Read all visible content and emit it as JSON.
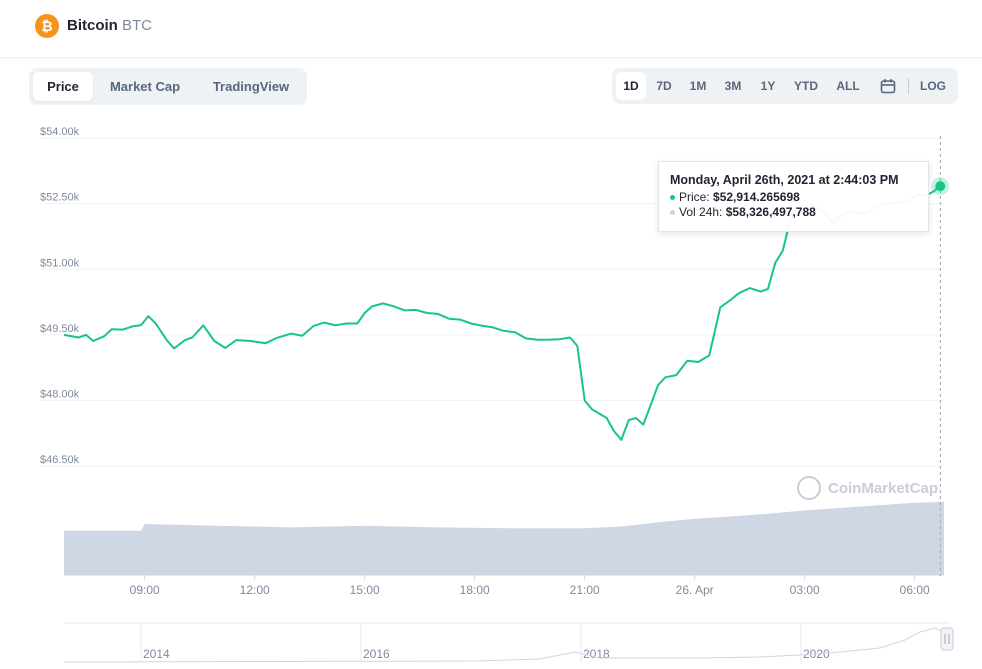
{
  "header": {
    "coin_name": "Bitcoin",
    "coin_symbol": "BTC",
    "coin_glyph": "₿"
  },
  "tabs": [
    {
      "label": "Price",
      "active": true
    },
    {
      "label": "Market Cap",
      "active": false
    },
    {
      "label": "TradingView",
      "active": false
    }
  ],
  "ranges": [
    {
      "label": "1D",
      "active": true
    },
    {
      "label": "7D",
      "active": false
    },
    {
      "label": "1M",
      "active": false
    },
    {
      "label": "3M",
      "active": false
    },
    {
      "label": "1Y",
      "active": false
    },
    {
      "label": "YTD",
      "active": false
    },
    {
      "label": "ALL",
      "active": false
    }
  ],
  "calendar_icon": "calendar-icon",
  "log_label": "LOG",
  "tooltip": {
    "date": "Monday, April 26th, 2021 at 2:44:03 PM",
    "price_label": "Price:",
    "price_value": "$52,914.265698",
    "vol_label": "Vol 24h:",
    "vol_value": "$58,326,497,788"
  },
  "watermark": "CoinMarketCap",
  "colors": {
    "line": "#16c784",
    "volume": "#cfd6e4",
    "axis_text": "#808a9d",
    "grid": "#eff2f5"
  },
  "chart_data": {
    "type": "line",
    "title": "",
    "y_ticks": [
      "$54.00k",
      "$52.50k",
      "$51.00k",
      "$49.50k",
      "$48.00k",
      "$46.50k"
    ],
    "y_tick_values": [
      54000,
      52500,
      51000,
      49500,
      48000,
      46500
    ],
    "ylim": [
      46000,
      54000
    ],
    "x_ticks": [
      "09:00",
      "12:00",
      "15:00",
      "18:00",
      "21:00",
      "26. Apr",
      "03:00",
      "06:00"
    ],
    "x_tick_hours": [
      9,
      12,
      15,
      18,
      21,
      24,
      27,
      30
    ],
    "xlim_hours": [
      6.8,
      30.8
    ],
    "series": [
      {
        "values": [
          {
            "t": 6.8,
            "p": 49500
          },
          {
            "t": 7.2,
            "p": 49440
          },
          {
            "t": 7.4,
            "p": 49500
          },
          {
            "t": 7.6,
            "p": 49360
          },
          {
            "t": 7.9,
            "p": 49470
          },
          {
            "t": 8.1,
            "p": 49630
          },
          {
            "t": 8.4,
            "p": 49620
          },
          {
            "t": 8.7,
            "p": 49700
          },
          {
            "t": 8.9,
            "p": 49720
          },
          {
            "t": 9.1,
            "p": 49930
          },
          {
            "t": 9.3,
            "p": 49760
          },
          {
            "t": 9.6,
            "p": 49380
          },
          {
            "t": 9.8,
            "p": 49190
          },
          {
            "t": 10.1,
            "p": 49380
          },
          {
            "t": 10.3,
            "p": 49440
          },
          {
            "t": 10.6,
            "p": 49720
          },
          {
            "t": 10.9,
            "p": 49360
          },
          {
            "t": 11.2,
            "p": 49200
          },
          {
            "t": 11.5,
            "p": 49380
          },
          {
            "t": 11.9,
            "p": 49360
          },
          {
            "t": 12.3,
            "p": 49310
          },
          {
            "t": 12.6,
            "p": 49430
          },
          {
            "t": 13.0,
            "p": 49530
          },
          {
            "t": 13.3,
            "p": 49480
          },
          {
            "t": 13.6,
            "p": 49700
          },
          {
            "t": 13.9,
            "p": 49780
          },
          {
            "t": 14.2,
            "p": 49720
          },
          {
            "t": 14.5,
            "p": 49760
          },
          {
            "t": 14.8,
            "p": 49760
          },
          {
            "t": 15.0,
            "p": 50000
          },
          {
            "t": 15.2,
            "p": 50150
          },
          {
            "t": 15.5,
            "p": 50220
          },
          {
            "t": 15.8,
            "p": 50150
          },
          {
            "t": 16.1,
            "p": 50060
          },
          {
            "t": 16.4,
            "p": 50070
          },
          {
            "t": 16.7,
            "p": 50000
          },
          {
            "t": 17.0,
            "p": 49980
          },
          {
            "t": 17.3,
            "p": 49870
          },
          {
            "t": 17.6,
            "p": 49850
          },
          {
            "t": 17.9,
            "p": 49760
          },
          {
            "t": 18.2,
            "p": 49710
          },
          {
            "t": 18.5,
            "p": 49670
          },
          {
            "t": 18.8,
            "p": 49590
          },
          {
            "t": 19.1,
            "p": 49560
          },
          {
            "t": 19.4,
            "p": 49420
          },
          {
            "t": 19.7,
            "p": 49390
          },
          {
            "t": 20.0,
            "p": 49390
          },
          {
            "t": 20.3,
            "p": 49400
          },
          {
            "t": 20.6,
            "p": 49440
          },
          {
            "t": 20.8,
            "p": 49250
          },
          {
            "t": 21.0,
            "p": 48000
          },
          {
            "t": 21.2,
            "p": 47800
          },
          {
            "t": 21.4,
            "p": 47700
          },
          {
            "t": 21.6,
            "p": 47600
          },
          {
            "t": 21.8,
            "p": 47300
          },
          {
            "t": 22.0,
            "p": 47100
          },
          {
            "t": 22.2,
            "p": 47550
          },
          {
            "t": 22.4,
            "p": 47600
          },
          {
            "t": 22.6,
            "p": 47450
          },
          {
            "t": 22.8,
            "p": 47900
          },
          {
            "t": 23.0,
            "p": 48350
          },
          {
            "t": 23.2,
            "p": 48530
          },
          {
            "t": 23.5,
            "p": 48580
          },
          {
            "t": 23.8,
            "p": 48910
          },
          {
            "t": 24.1,
            "p": 48880
          },
          {
            "t": 24.4,
            "p": 49030
          },
          {
            "t": 24.7,
            "p": 50130
          },
          {
            "t": 25.0,
            "p": 50310
          },
          {
            "t": 25.2,
            "p": 50450
          },
          {
            "t": 25.5,
            "p": 50570
          },
          {
            "t": 25.8,
            "p": 50490
          },
          {
            "t": 26.0,
            "p": 50550
          },
          {
            "t": 26.2,
            "p": 51150
          },
          {
            "t": 26.4,
            "p": 51420
          },
          {
            "t": 26.6,
            "p": 52100
          },
          {
            "t": 26.8,
            "p": 52420
          },
          {
            "t": 27.0,
            "p": 52300
          },
          {
            "t": 27.2,
            "p": 52470
          },
          {
            "t": 27.5,
            "p": 52330
          },
          {
            "t": 27.8,
            "p": 52040
          },
          {
            "t": 28.0,
            "p": 52240
          },
          {
            "t": 28.3,
            "p": 52320
          },
          {
            "t": 28.6,
            "p": 52260
          },
          {
            "t": 28.9,
            "p": 52400
          },
          {
            "t": 29.2,
            "p": 52500
          },
          {
            "t": 29.5,
            "p": 52520
          },
          {
            "t": 29.8,
            "p": 52540
          },
          {
            "t": 30.1,
            "p": 52700
          },
          {
            "t": 30.3,
            "p": 52680
          },
          {
            "t": 30.5,
            "p": 52770
          },
          {
            "t": 30.7,
            "p": 52900
          }
        ]
      }
    ],
    "volume_series": [
      {
        "t": 6.8,
        "v": 0.52
      },
      {
        "t": 8.9,
        "v": 0.52
      },
      {
        "t": 9.0,
        "v": 0.6
      },
      {
        "t": 11.0,
        "v": 0.58
      },
      {
        "t": 13.0,
        "v": 0.56
      },
      {
        "t": 15.0,
        "v": 0.58
      },
      {
        "t": 17.0,
        "v": 0.56
      },
      {
        "t": 19.0,
        "v": 0.55
      },
      {
        "t": 21.0,
        "v": 0.55
      },
      {
        "t": 22.0,
        "v": 0.57
      },
      {
        "t": 23.0,
        "v": 0.62
      },
      {
        "t": 24.0,
        "v": 0.66
      },
      {
        "t": 25.0,
        "v": 0.69
      },
      {
        "t": 26.0,
        "v": 0.72
      },
      {
        "t": 27.0,
        "v": 0.76
      },
      {
        "t": 28.0,
        "v": 0.79
      },
      {
        "t": 29.0,
        "v": 0.82
      },
      {
        "t": 30.0,
        "v": 0.85
      },
      {
        "t": 30.8,
        "v": 0.86
      }
    ],
    "navigator_ticks": [
      "2014",
      "2016",
      "2018",
      "2020"
    ]
  }
}
